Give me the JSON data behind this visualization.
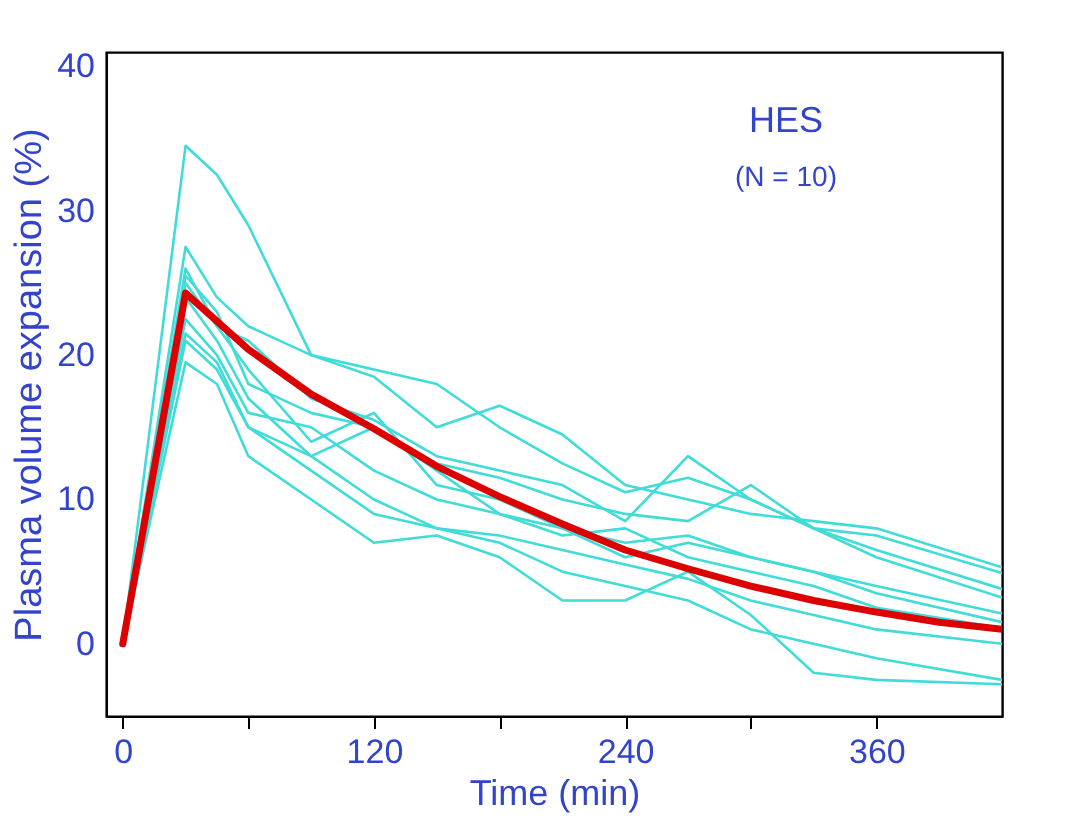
{
  "chart_data": {
    "type": "line",
    "xlabel": "Time (min)",
    "ylabel": "Plasma volume expansion (%)",
    "annotations": [
      "HES",
      "(N = 10)"
    ],
    "xlim": [
      -8,
      420
    ],
    "ylim": [
      -5,
      41
    ],
    "xticks": [
      0,
      {
        "value": 60,
        "label": null
      },
      120,
      {
        "value": 180,
        "label": null
      },
      240,
      {
        "value": 300,
        "label": null
      },
      360
    ],
    "yticks": [
      0,
      10,
      20,
      30,
      40
    ],
    "grid": false,
    "line_style": "solid",
    "x": [
      0,
      30,
      45,
      60,
      90,
      120,
      150,
      180,
      210,
      240,
      270,
      300,
      330,
      360,
      420
    ],
    "series": [
      {
        "color": "#40dcd8",
        "values": [
          0,
          34.5,
          32.5,
          29,
          20,
          18.5,
          15,
          16.5,
          14.5,
          11,
          10,
          9,
          8.5,
          8,
          5.3
        ]
      },
      {
        "color": "#40dcd8",
        "values": [
          0,
          27.5,
          24,
          22,
          20,
          19,
          18,
          15,
          12.5,
          10.5,
          11.5,
          10,
          8,
          7.5,
          4.9
        ]
      },
      {
        "color": "#40dcd8",
        "values": [
          0,
          26,
          22,
          21,
          17,
          15.5,
          13,
          12,
          11,
          8.5,
          13,
          10,
          8,
          6.5,
          3.8
        ]
      },
      {
        "color": "#40dcd8",
        "values": [
          0,
          25.5,
          23,
          18,
          16,
          15,
          12.5,
          11.5,
          10,
          9,
          8.5,
          11,
          8,
          6,
          3.2
        ]
      },
      {
        "color": "#40dcd8",
        "values": [
          0,
          25,
          22,
          19,
          14,
          16,
          11,
          10,
          8,
          7,
          7.5,
          6,
          5,
          4,
          2.1
        ]
      },
      {
        "color": "#40dcd8",
        "values": [
          0,
          24,
          21,
          17,
          13,
          15,
          12,
          9,
          8,
          6,
          7,
          6,
          5,
          3.5,
          1.5
        ]
      },
      {
        "color": "#40dcd8",
        "values": [
          0,
          22.5,
          20,
          16,
          15,
          12,
          10,
          9,
          7.5,
          8,
          6,
          5,
          4,
          2.5,
          1.1
        ]
      },
      {
        "color": "#40dcd8",
        "values": [
          0,
          21.5,
          19.5,
          15,
          13,
          10,
          8,
          7.5,
          6.5,
          5.5,
          4.5,
          3,
          2,
          1,
          0
        ]
      },
      {
        "color": "#40dcd8",
        "values": [
          0,
          21,
          19,
          15,
          12,
          9,
          8,
          7,
          5,
          4,
          3,
          1,
          0,
          -1,
          -2.5
        ]
      },
      {
        "color": "#40dcd8",
        "values": [
          0,
          19.5,
          18,
          13,
          10,
          7,
          7.5,
          6,
          3,
          3,
          5,
          2,
          -2,
          -2.5,
          -2.8
        ]
      },
      {
        "color": "#dd0000",
        "x": [
          0,
          30,
          60,
          90,
          120,
          150,
          180,
          210,
          240,
          270,
          300,
          330,
          360,
          390,
          420
        ],
        "values": [
          0,
          24.3,
          20.4,
          17.3,
          14.9,
          12.3,
          10.2,
          8.3,
          6.5,
          5.2,
          4.0,
          3.0,
          2.2,
          1.5,
          1.0
        ]
      }
    ]
  }
}
